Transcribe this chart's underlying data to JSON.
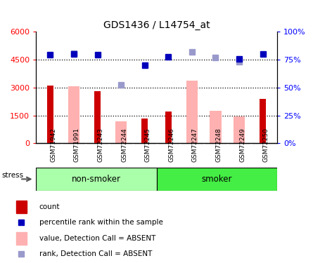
{
  "title": "GDS1436 / L14754_at",
  "samples": [
    "GSM71942",
    "GSM71991",
    "GSM72243",
    "GSM72244",
    "GSM72245",
    "GSM72246",
    "GSM72247",
    "GSM72248",
    "GSM72249",
    "GSM72250"
  ],
  "count_values": [
    3100,
    null,
    2800,
    null,
    1350,
    1700,
    null,
    null,
    null,
    2400
  ],
  "absent_value_bars": [
    null,
    3050,
    null,
    1200,
    null,
    null,
    3350,
    1750,
    1450,
    null
  ],
  "percentile_rank": [
    4750,
    4800,
    4750,
    null,
    4200,
    4650,
    null,
    null,
    4550,
    4800
  ],
  "absent_rank_dots": [
    null,
    4850,
    null,
    3150,
    null,
    null,
    4900,
    4600,
    4400,
    null
  ],
  "ylim": [
    0,
    6000
  ],
  "yticks_left": [
    0,
    1500,
    3000,
    4500,
    6000
  ],
  "ytick_labels_left": [
    "0",
    "1500",
    "3000",
    "4500",
    "6000"
  ],
  "yticks_right": [
    0,
    1500,
    3000,
    4500,
    6000
  ],
  "ytick_labels_right": [
    "0%",
    "25%",
    "50%",
    "75%",
    "100%"
  ],
  "hlines": [
    1500,
    3000,
    4500
  ],
  "bar_color_count": "#cc0000",
  "bar_color_absent": "#ffb0b0",
  "dot_color_rank": "#0000bb",
  "dot_color_absent_rank": "#9999cc",
  "group_label_non_smoker": "non-smoker",
  "group_label_smoker": "smoker",
  "stress_label": "stress",
  "bar_width": 0.38,
  "non_smoker_color": "#aaffaa",
  "smoker_color": "#44ee44",
  "gray_label_bg": "#cccccc",
  "legend_items": [
    {
      "label": "count",
      "color": "#cc0000",
      "type": "bar"
    },
    {
      "label": "percentile rank within the sample",
      "color": "#0000bb",
      "type": "dot"
    },
    {
      "label": "value, Detection Call = ABSENT",
      "color": "#ffb0b0",
      "type": "bar"
    },
    {
      "label": "rank, Detection Call = ABSENT",
      "color": "#9999cc",
      "type": "dot"
    }
  ]
}
